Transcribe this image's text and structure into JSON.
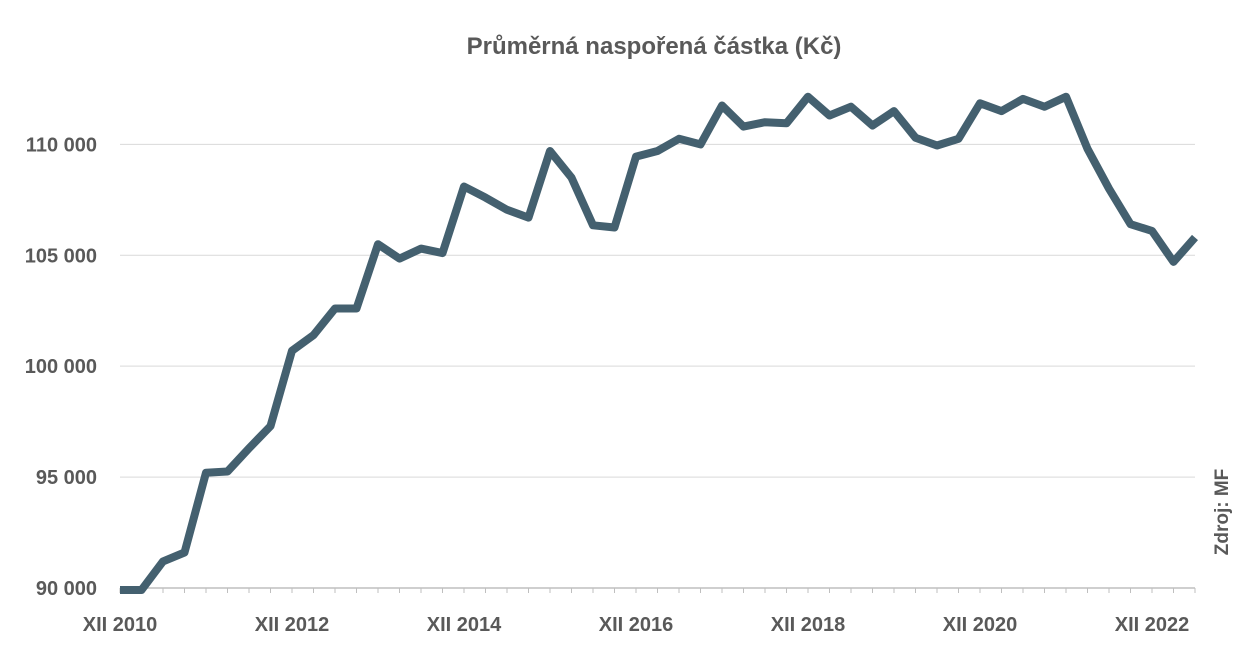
{
  "chart_data": {
    "type": "line",
    "title": "Průměrná naspořená částka (Kč)",
    "source": "Zdroj: MF",
    "xlabel": "",
    "ylabel": "",
    "ylim": [
      90000,
      112000
    ],
    "yticks": [
      90000,
      95000,
      100000,
      105000,
      110000
    ],
    "ytick_labels": [
      "90 000",
      "95 000",
      "100 000",
      "105 000",
      "110 000"
    ],
    "xtick_labels": [
      "XII 2010",
      "XII 2012",
      "XII 2014",
      "XII 2016",
      "XII 2018",
      "XII 2020",
      "XII 2022"
    ],
    "grid": true,
    "color": "#44606f",
    "series": [
      {
        "x": [
          "XII 2010",
          "III 2011",
          "VI 2011",
          "IX 2011",
          "XII 2011",
          "III 2012",
          "VI 2012",
          "IX 2012",
          "XII 2012",
          "III 2013",
          "VI 2013",
          "IX 2013",
          "XII 2013",
          "III 2014",
          "VI 2014",
          "IX 2014",
          "XII 2014",
          "III 2015",
          "VI 2015",
          "IX 2015",
          "XII 2015",
          "III 2016",
          "VI 2016",
          "IX 2016",
          "XII 2016",
          "III 2017",
          "VI 2017",
          "IX 2017",
          "XII 2017",
          "III 2018",
          "VI 2018",
          "IX 2018",
          "XII 2018",
          "III 2019",
          "VI 2019",
          "IX 2019",
          "XII 2019",
          "III 2020",
          "VI 2020",
          "IX 2020",
          "XII 2020",
          "III 2021",
          "VI 2021",
          "IX 2021",
          "XII 2021",
          "III 2022",
          "VI 2022",
          "IX 2022",
          "XII 2022",
          "III 2023",
          "VI 2023"
        ],
        "values": [
          89200,
          89300,
          91200,
          91600,
          95200,
          95250,
          96300,
          97300,
          100700,
          101400,
          102600,
          102600,
          105500,
          104850,
          105300,
          105100,
          108100,
          107600,
          107050,
          106700,
          109700,
          108500,
          106350,
          106250,
          109450,
          109700,
          110250,
          110000,
          111750,
          110800,
          111000,
          110950,
          112150,
          111300,
          111700,
          110850,
          111500,
          110300,
          109950,
          110250,
          111850,
          111500,
          112050,
          111700,
          112150,
          109800,
          108000,
          106400,
          106100,
          104700,
          105800
        ]
      }
    ]
  }
}
